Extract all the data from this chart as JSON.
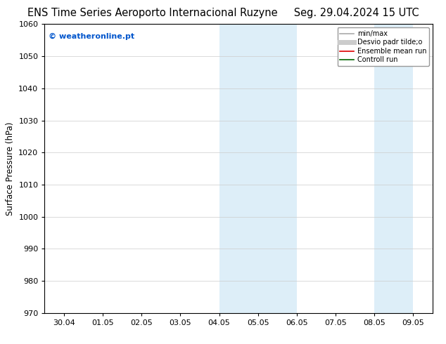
{
  "title_left": "ENS Time Series Aeroporto Internacional Ruzyne",
  "title_right": "Seg. 29.04.2024 15 UTC",
  "ylabel": "Surface Pressure (hPa)",
  "ylim": [
    970,
    1060
  ],
  "yticks": [
    970,
    980,
    990,
    1000,
    1010,
    1020,
    1030,
    1040,
    1050,
    1060
  ],
  "xtick_labels": [
    "30.04",
    "01.05",
    "02.05",
    "03.05",
    "04.05",
    "05.05",
    "06.05",
    "07.05",
    "08.05",
    "09.05"
  ],
  "xtick_positions": [
    0,
    1,
    2,
    3,
    4,
    5,
    6,
    7,
    8,
    9
  ],
  "shaded_regions": [
    {
      "x_start": 4.0,
      "x_end": 5.0,
      "color": "#ddeef8"
    },
    {
      "x_start": 5.0,
      "x_end": 6.0,
      "color": "#ddeef8"
    },
    {
      "x_start": 8.0,
      "x_end": 9.0,
      "color": "#ddeef8"
    }
  ],
  "watermark_text": "© weatheronline.pt",
  "watermark_color": "#0055cc",
  "legend_items": [
    {
      "label": "min/max",
      "color": "#aaaaaa",
      "lw": 1.2,
      "type": "line"
    },
    {
      "label": "Desvio padr tilde;o",
      "color": "#cccccc",
      "lw": 5,
      "type": "line"
    },
    {
      "label": "Ensemble mean run",
      "color": "#dd0000",
      "lw": 1.2,
      "type": "line"
    },
    {
      "label": "Controll run",
      "color": "#006600",
      "lw": 1.2,
      "type": "line"
    }
  ],
  "background_color": "#ffffff",
  "plot_bg_color": "#ffffff",
  "grid_color": "#cccccc",
  "spine_color": "#000000",
  "title_fontsize": 10.5,
  "tick_fontsize": 8,
  "ylabel_fontsize": 8.5,
  "legend_fontsize": 7,
  "watermark_fontsize": 8,
  "xlim_left": -0.5,
  "xlim_right": 9.5
}
